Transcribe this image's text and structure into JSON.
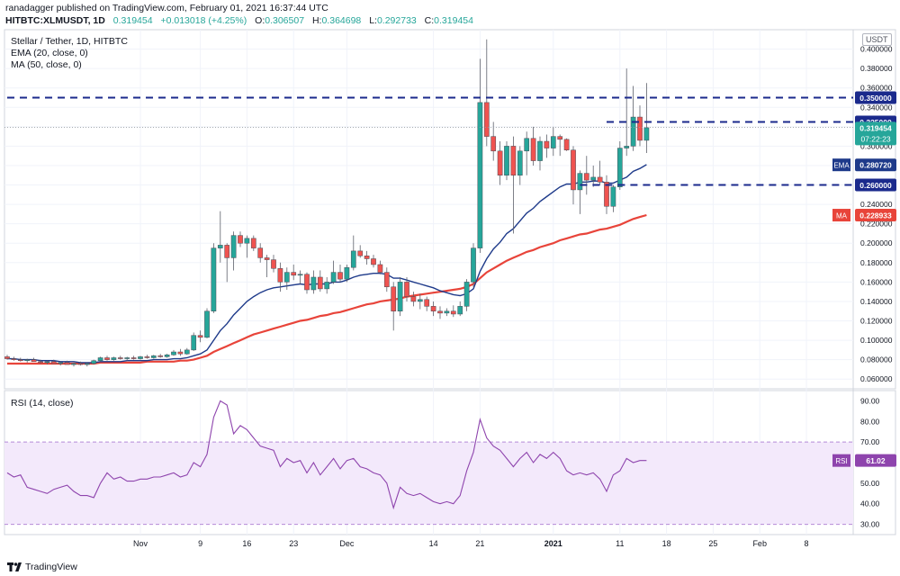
{
  "header": {
    "publisher": "ranadagger published on TradingView.com, February 01, 2021 16:37:44 UTC",
    "symbol": "HITBTC:XLMUSDT, 1D",
    "price": "0.319454",
    "change": "+0.013018 (+4.25%)",
    "o_label": "O:",
    "o": "0.306507",
    "h_label": "H:",
    "h": "0.364698",
    "l_label": "L:",
    "l": "0.292733",
    "c_label": "C:",
    "c": "0.319454"
  },
  "indicators": {
    "title": "Stellar / Tether, 1D, HITBTC",
    "ema": "EMA (20, close, 0)",
    "ma": "MA (50, close, 0)",
    "rsi": "RSI (14, close)"
  },
  "currency_badge": "USDT",
  "footer": {
    "brand": "TradingView"
  },
  "colors": {
    "up": "#26a69a",
    "down": "#ef5350",
    "ema": "#1e3a8a",
    "ma": "#e8443a",
    "rsi": "#8e44ad",
    "level": "#1b2a8c"
  },
  "chart_data": {
    "type": "candlestick",
    "y_range": [
      0.05,
      0.42
    ],
    "y_ticks": [
      "0.060000",
      "0.080000",
      "0.100000",
      "0.120000",
      "0.140000",
      "0.160000",
      "0.180000",
      "0.200000",
      "0.220000",
      "0.240000",
      "0.260000",
      "0.280000",
      "0.300000",
      "0.320000",
      "0.340000",
      "0.360000",
      "0.380000",
      "0.400000"
    ],
    "x_ticks": [
      {
        "day": 20,
        "label": "Nov"
      },
      {
        "day": 29,
        "label": "9"
      },
      {
        "day": 36,
        "label": "16"
      },
      {
        "day": 43,
        "label": "23"
      },
      {
        "day": 51,
        "label": "Dec"
      },
      {
        "day": 64,
        "label": "14"
      },
      {
        "day": 71,
        "label": "21"
      },
      {
        "day": 82,
        "label": "2021"
      },
      {
        "day": 92,
        "label": "11"
      },
      {
        "day": 99,
        "label": "18"
      },
      {
        "day": 106,
        "label": "25"
      },
      {
        "day": 113,
        "label": "Feb"
      },
      {
        "day": 120,
        "label": "8"
      }
    ],
    "levels": [
      {
        "value": 0.35,
        "label": "0.350000",
        "start_day": 0
      },
      {
        "value": 0.325,
        "label": "0.325000",
        "start_day": 90
      },
      {
        "value": 0.26,
        "label": "0.260000",
        "start_day": 86
      }
    ],
    "last_price": {
      "value": 0.319454,
      "label": "0.319454",
      "countdown": "07:22:23"
    },
    "ema_label": {
      "name": "EMA",
      "value": 0.28072,
      "label": "0.280720"
    },
    "ma_label": {
      "name": "MA",
      "value": 0.228933,
      "label": "0.228933"
    },
    "candles": [
      [
        0.083,
        0.085,
        0.08,
        0.081
      ],
      [
        0.081,
        0.083,
        0.079,
        0.08
      ],
      [
        0.08,
        0.082,
        0.078,
        0.079
      ],
      [
        0.079,
        0.081,
        0.077,
        0.08
      ],
      [
        0.08,
        0.082,
        0.078,
        0.078
      ],
      [
        0.078,
        0.08,
        0.076,
        0.077
      ],
      [
        0.077,
        0.079,
        0.075,
        0.078
      ],
      [
        0.078,
        0.08,
        0.076,
        0.076
      ],
      [
        0.076,
        0.078,
        0.074,
        0.077
      ],
      [
        0.077,
        0.079,
        0.075,
        0.075
      ],
      [
        0.075,
        0.077,
        0.073,
        0.076
      ],
      [
        0.076,
        0.078,
        0.074,
        0.075
      ],
      [
        0.075,
        0.077,
        0.073,
        0.076
      ],
      [
        0.076,
        0.08,
        0.075,
        0.079
      ],
      [
        0.079,
        0.083,
        0.078,
        0.082
      ],
      [
        0.082,
        0.084,
        0.079,
        0.08
      ],
      [
        0.08,
        0.083,
        0.079,
        0.082
      ],
      [
        0.082,
        0.084,
        0.08,
        0.081
      ],
      [
        0.081,
        0.083,
        0.079,
        0.082
      ],
      [
        0.082,
        0.084,
        0.08,
        0.081
      ],
      [
        0.081,
        0.084,
        0.08,
        0.083
      ],
      [
        0.083,
        0.085,
        0.081,
        0.082
      ],
      [
        0.082,
        0.085,
        0.081,
        0.084
      ],
      [
        0.084,
        0.086,
        0.082,
        0.083
      ],
      [
        0.083,
        0.086,
        0.082,
        0.085
      ],
      [
        0.085,
        0.09,
        0.084,
        0.088
      ],
      [
        0.088,
        0.091,
        0.084,
        0.086
      ],
      [
        0.086,
        0.092,
        0.085,
        0.09
      ],
      [
        0.09,
        0.108,
        0.089,
        0.105
      ],
      [
        0.105,
        0.11,
        0.098,
        0.103
      ],
      [
        0.103,
        0.133,
        0.102,
        0.13
      ],
      [
        0.13,
        0.2,
        0.128,
        0.195
      ],
      [
        0.195,
        0.233,
        0.18,
        0.198
      ],
      [
        0.198,
        0.2,
        0.16,
        0.185
      ],
      [
        0.185,
        0.212,
        0.172,
        0.208
      ],
      [
        0.208,
        0.212,
        0.196,
        0.2
      ],
      [
        0.2,
        0.208,
        0.185,
        0.205
      ],
      [
        0.205,
        0.208,
        0.192,
        0.195
      ],
      [
        0.195,
        0.2,
        0.18,
        0.185
      ],
      [
        0.185,
        0.188,
        0.165,
        0.183
      ],
      [
        0.183,
        0.188,
        0.17,
        0.174
      ],
      [
        0.174,
        0.18,
        0.15,
        0.16
      ],
      [
        0.16,
        0.175,
        0.152,
        0.17
      ],
      [
        0.17,
        0.178,
        0.162,
        0.167
      ],
      [
        0.167,
        0.172,
        0.158,
        0.168
      ],
      [
        0.168,
        0.17,
        0.148,
        0.152
      ],
      [
        0.152,
        0.172,
        0.148,
        0.165
      ],
      [
        0.165,
        0.172,
        0.15,
        0.153
      ],
      [
        0.153,
        0.165,
        0.148,
        0.16
      ],
      [
        0.16,
        0.182,
        0.158,
        0.17
      ],
      [
        0.17,
        0.178,
        0.16,
        0.163
      ],
      [
        0.163,
        0.178,
        0.16,
        0.175
      ],
      [
        0.175,
        0.208,
        0.172,
        0.192
      ],
      [
        0.192,
        0.198,
        0.185,
        0.187
      ],
      [
        0.187,
        0.192,
        0.178,
        0.184
      ],
      [
        0.184,
        0.188,
        0.175,
        0.178
      ],
      [
        0.178,
        0.182,
        0.168,
        0.17
      ],
      [
        0.17,
        0.175,
        0.15,
        0.155
      ],
      [
        0.155,
        0.16,
        0.11,
        0.13
      ],
      [
        0.13,
        0.165,
        0.125,
        0.16
      ],
      [
        0.16,
        0.165,
        0.14,
        0.145
      ],
      [
        0.145,
        0.15,
        0.135,
        0.14
      ],
      [
        0.14,
        0.148,
        0.132,
        0.142
      ],
      [
        0.142,
        0.145,
        0.13,
        0.135
      ],
      [
        0.135,
        0.14,
        0.125,
        0.13
      ],
      [
        0.13,
        0.135,
        0.122,
        0.128
      ],
      [
        0.128,
        0.133,
        0.125,
        0.13
      ],
      [
        0.13,
        0.136,
        0.124,
        0.127
      ],
      [
        0.127,
        0.14,
        0.125,
        0.135
      ],
      [
        0.135,
        0.163,
        0.13,
        0.16
      ],
      [
        0.16,
        0.2,
        0.155,
        0.195
      ],
      [
        0.195,
        0.39,
        0.19,
        0.345
      ],
      [
        0.345,
        0.41,
        0.3,
        0.31
      ],
      [
        0.31,
        0.325,
        0.285,
        0.295
      ],
      [
        0.295,
        0.305,
        0.26,
        0.27
      ],
      [
        0.27,
        0.305,
        0.265,
        0.3
      ],
      [
        0.3,
        0.31,
        0.21,
        0.27
      ],
      [
        0.27,
        0.3,
        0.26,
        0.295
      ],
      [
        0.295,
        0.315,
        0.27,
        0.308
      ],
      [
        0.308,
        0.32,
        0.28,
        0.285
      ],
      [
        0.285,
        0.31,
        0.275,
        0.305
      ],
      [
        0.305,
        0.312,
        0.288,
        0.298
      ],
      [
        0.298,
        0.32,
        0.29,
        0.31
      ],
      [
        0.31,
        0.312,
        0.29,
        0.307
      ],
      [
        0.307,
        0.308,
        0.295,
        0.296
      ],
      [
        0.296,
        0.3,
        0.24,
        0.255
      ],
      [
        0.255,
        0.275,
        0.23,
        0.272
      ],
      [
        0.272,
        0.29,
        0.25,
        0.265
      ],
      [
        0.265,
        0.28,
        0.258,
        0.268
      ],
      [
        0.268,
        0.285,
        0.26,
        0.263
      ],
      [
        0.263,
        0.27,
        0.23,
        0.238
      ],
      [
        0.238,
        0.26,
        0.232,
        0.258
      ],
      [
        0.258,
        0.305,
        0.255,
        0.298
      ],
      [
        0.298,
        0.38,
        0.29,
        0.3
      ],
      [
        0.3,
        0.362,
        0.295,
        0.33
      ],
      [
        0.33,
        0.342,
        0.3,
        0.306
      ],
      [
        0.306,
        0.365,
        0.293,
        0.319
      ]
    ],
    "ema_series": [
      0.081,
      0.081,
      0.08,
      0.08,
      0.08,
      0.079,
      0.079,
      0.079,
      0.078,
      0.078,
      0.078,
      0.077,
      0.077,
      0.077,
      0.078,
      0.078,
      0.078,
      0.078,
      0.079,
      0.079,
      0.079,
      0.079,
      0.08,
      0.08,
      0.08,
      0.081,
      0.081,
      0.082,
      0.084,
      0.086,
      0.09,
      0.1,
      0.11,
      0.117,
      0.126,
      0.133,
      0.14,
      0.145,
      0.149,
      0.152,
      0.154,
      0.155,
      0.156,
      0.157,
      0.158,
      0.157,
      0.158,
      0.158,
      0.158,
      0.16,
      0.16,
      0.162,
      0.165,
      0.167,
      0.168,
      0.169,
      0.169,
      0.168,
      0.164,
      0.164,
      0.162,
      0.16,
      0.158,
      0.156,
      0.154,
      0.151,
      0.149,
      0.147,
      0.146,
      0.148,
      0.153,
      0.171,
      0.184,
      0.194,
      0.201,
      0.21,
      0.215,
      0.223,
      0.231,
      0.236,
      0.243,
      0.248,
      0.253,
      0.258,
      0.261,
      0.261,
      0.263,
      0.263,
      0.264,
      0.264,
      0.262,
      0.262,
      0.265,
      0.268,
      0.274,
      0.277,
      0.281
    ],
    "ma_series": [
      0.076,
      0.076,
      0.076,
      0.076,
      0.076,
      0.076,
      0.076,
      0.076,
      0.076,
      0.076,
      0.076,
      0.076,
      0.076,
      0.076,
      0.077,
      0.077,
      0.077,
      0.077,
      0.077,
      0.077,
      0.077,
      0.078,
      0.078,
      0.078,
      0.078,
      0.078,
      0.079,
      0.079,
      0.08,
      0.082,
      0.084,
      0.088,
      0.091,
      0.094,
      0.097,
      0.1,
      0.103,
      0.106,
      0.108,
      0.11,
      0.112,
      0.114,
      0.116,
      0.118,
      0.12,
      0.121,
      0.123,
      0.125,
      0.126,
      0.128,
      0.129,
      0.131,
      0.133,
      0.135,
      0.137,
      0.138,
      0.14,
      0.141,
      0.142,
      0.143,
      0.145,
      0.146,
      0.147,
      0.148,
      0.149,
      0.15,
      0.151,
      0.152,
      0.153,
      0.155,
      0.158,
      0.164,
      0.17,
      0.174,
      0.178,
      0.182,
      0.185,
      0.188,
      0.191,
      0.193,
      0.196,
      0.198,
      0.2,
      0.203,
      0.205,
      0.207,
      0.209,
      0.21,
      0.212,
      0.214,
      0.215,
      0.217,
      0.219,
      0.222,
      0.225,
      0.227,
      0.229
    ],
    "rsi": {
      "y_range": [
        25,
        95
      ],
      "y_ticks": [
        "30.00",
        "40.00",
        "50.00",
        "60.00",
        "70.00",
        "80.00",
        "90.00"
      ],
      "band": [
        30,
        70
      ],
      "value_label": {
        "name": "RSI",
        "value": 61.02,
        "label": "61.02"
      },
      "series": [
        55,
        53,
        54,
        48,
        47,
        46,
        45,
        47,
        48,
        49,
        46,
        44,
        44,
        43,
        50,
        55,
        52,
        53,
        51,
        51,
        52,
        52,
        53,
        53,
        54,
        55,
        53,
        54,
        60,
        58,
        64,
        82,
        90,
        88,
        74,
        78,
        76,
        72,
        68,
        67,
        66,
        58,
        62,
        60,
        61,
        55,
        60,
        54,
        58,
        62,
        57,
        61,
        62,
        58,
        57,
        55,
        54,
        50,
        38,
        48,
        45,
        44,
        45,
        43,
        41,
        40,
        41,
        40,
        44,
        56,
        65,
        81,
        72,
        68,
        66,
        62,
        58,
        62,
        65,
        60,
        64,
        62,
        65,
        62,
        56,
        54,
        55,
        54,
        55,
        52,
        46,
        54,
        56,
        62,
        60,
        61,
        61
      ]
    }
  }
}
